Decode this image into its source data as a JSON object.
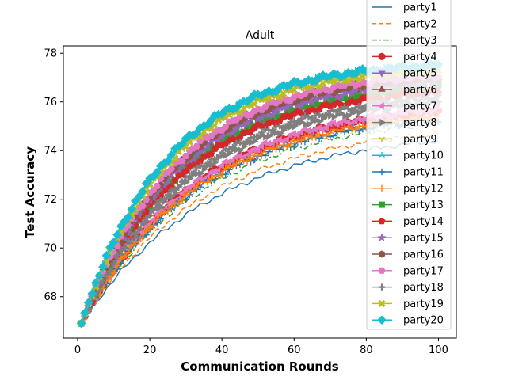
{
  "chart_data": {
    "type": "line",
    "title": "Adult",
    "xlabel": "Communication Rounds",
    "ylabel": "Test Accuracy",
    "xlim": [
      -3.95,
      104.95
    ],
    "ylim": [
      66.3,
      78.3
    ],
    "xticks": [
      "0",
      "20",
      "40",
      "60",
      "80",
      "100"
    ],
    "yticks": [
      "68",
      "70",
      "72",
      "74",
      "76",
      "78"
    ],
    "grid": false,
    "legend_position": "top-right (extends above plot area)",
    "x_start": 1,
    "x_end": 100,
    "start_value": 66.9,
    "series": [
      {
        "name": "party1",
        "color": "#1f77b4",
        "linestyle": "solid",
        "marker": "none",
        "final": 74.4,
        "curve": 0.9
      },
      {
        "name": "party2",
        "color": "#ff7f0e",
        "linestyle": "dashed",
        "marker": "none",
        "final": 74.7,
        "curve": 0.93
      },
      {
        "name": "party3",
        "color": "#2ca02c",
        "linestyle": "dashdot",
        "marker": "none",
        "final": 75.1,
        "curve": 0.95
      },
      {
        "name": "party4",
        "color": "#d62728",
        "linestyle": "solid",
        "marker": "circle",
        "final": 75.6,
        "curve": 1.0
      },
      {
        "name": "party5",
        "color": "#9467bd",
        "linestyle": "solid",
        "marker": "tri_down",
        "final": 76.6,
        "curve": 1.1
      },
      {
        "name": "party6",
        "color": "#8c564b",
        "linestyle": "solid",
        "marker": "tri_up",
        "final": 76.9,
        "curve": 1.15
      },
      {
        "name": "party7",
        "color": "#e377c2",
        "linestyle": "solid",
        "marker": "tri_left",
        "final": 75.7,
        "curve": 0.98
      },
      {
        "name": "party8",
        "color": "#7f7f7f",
        "linestyle": "solid",
        "marker": "tri_right",
        "final": 76.0,
        "curve": 1.05
      },
      {
        "name": "party9",
        "color": "#bcbd22",
        "linestyle": "solid",
        "marker": "tri1",
        "final": 77.4,
        "curve": 1.3
      },
      {
        "name": "party10",
        "color": "#17becf",
        "linestyle": "solid",
        "marker": "tri2",
        "final": 77.5,
        "curve": 1.3
      },
      {
        "name": "party11",
        "color": "#1f77b4",
        "linestyle": "solid",
        "marker": "plus_thin",
        "final": 75.3,
        "curve": 0.98
      },
      {
        "name": "party12",
        "color": "#ff7f0e",
        "linestyle": "solid",
        "marker": "plus_thin",
        "final": 75.4,
        "curve": 0.98
      },
      {
        "name": "party13",
        "color": "#2ca02c",
        "linestyle": "solid",
        "marker": "square",
        "final": 76.6,
        "curve": 1.12
      },
      {
        "name": "party14",
        "color": "#d62728",
        "linestyle": "solid",
        "marker": "pentagon",
        "final": 76.4,
        "curve": 1.12
      },
      {
        "name": "party15",
        "color": "#9467bd",
        "linestyle": "solid",
        "marker": "star",
        "final": 76.8,
        "curve": 1.15
      },
      {
        "name": "party16",
        "color": "#8c564b",
        "linestyle": "solid",
        "marker": "hexagon",
        "final": 77.0,
        "curve": 1.18
      },
      {
        "name": "party17",
        "color": "#e377c2",
        "linestyle": "solid",
        "marker": "hexagon2",
        "final": 77.1,
        "curve": 1.2
      },
      {
        "name": "party18",
        "color": "#7f7f7f",
        "linestyle": "solid",
        "marker": "plus",
        "final": 76.2,
        "curve": 1.05
      },
      {
        "name": "party19",
        "color": "#bcbd22",
        "linestyle": "solid",
        "marker": "x_filled",
        "final": 77.3,
        "curve": 1.28
      },
      {
        "name": "party20",
        "color": "#17becf",
        "linestyle": "solid",
        "marker": "diamond",
        "final": 77.5,
        "curve": 1.32
      }
    ]
  }
}
